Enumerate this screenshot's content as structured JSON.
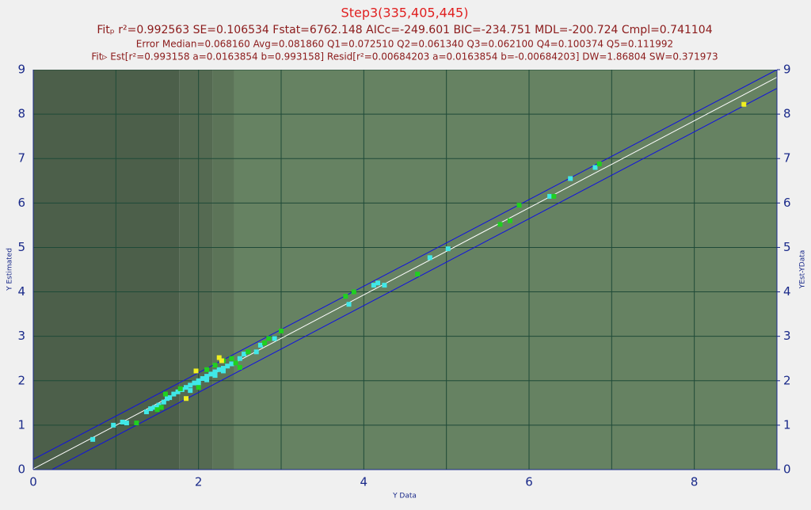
{
  "chart_data": {
    "type": "scatter",
    "title": "Step3(335,405,445)",
    "subtitle": "Fitₚ r²=0.992563 SE=0.106534 Fstat=6762.148 AICc=-249.601 BIC=-234.751 MDL=-200.724 Cmpl=0.741104",
    "annotations": [
      "Error Median=0.068160 Avg=0.081860 Q1=0.072510 Q2=0.061340 Q3=0.062100 Q4=0.100374 Q5=0.111992",
      "Fit▹ Est[r²=0.993158 a=0.0163854 b=0.993158] Resid[r²=0.00684203 a=0.0163854 b=-0.00684203] DW=1.86804 SW=0.371973"
    ],
    "xlabel": "Y Data",
    "ylabel": "Y Estimated",
    "y2label": "YEst-YData",
    "xlim": [
      0,
      9
    ],
    "ylim": [
      0,
      9
    ],
    "y2lim": [
      0,
      9
    ],
    "xticks": [
      0,
      2,
      4,
      6,
      8
    ],
    "xminor": [
      1,
      3,
      5,
      7,
      9
    ],
    "yticks": [
      0,
      1,
      2,
      3,
      4,
      5,
      6,
      7,
      8,
      9
    ],
    "y2ticks": [
      0,
      1,
      2,
      3,
      4,
      5,
      6,
      7,
      8,
      9
    ],
    "grid": true,
    "bands": [
      {
        "x": [
          0,
          1.77
        ],
        "color": "#4c5f4a"
      },
      {
        "x": [
          1.77,
          2.17
        ],
        "color": "#556a52"
      },
      {
        "x": [
          2.17,
          2.43
        ],
        "color": "#5c7458"
      },
      {
        "x": [
          2.43,
          9
        ],
        "color": "#668262"
      }
    ],
    "lines": [
      {
        "color": "#ffffff",
        "x": [
          0,
          9
        ],
        "values": [
          0.016,
          8.83
        ]
      },
      {
        "color": "#1010e0",
        "x": [
          0,
          9
        ],
        "values": [
          0.23,
          9.0
        ]
      },
      {
        "color": "#1010e0",
        "x": [
          0,
          9
        ],
        "values": [
          -0.22,
          8.58
        ]
      }
    ],
    "series": [
      {
        "color": "#40e8e8",
        "x": [
          0.72,
          0.97,
          1.08,
          1.13,
          1.37,
          1.42,
          1.47,
          1.52,
          1.58,
          1.62,
          1.7,
          1.75,
          1.8,
          1.85,
          1.9,
          1.95,
          2.0,
          2.05,
          2.1,
          2.15,
          2.2,
          2.25,
          2.3,
          2.35,
          2.4,
          2.5,
          2.55,
          2.7,
          2.75,
          2.92,
          3.82,
          4.12,
          4.17,
          4.25,
          4.8,
          5.02,
          6.25,
          6.5,
          6.8,
          1.65,
          1.9,
          2.0,
          2.1,
          2.2,
          2.3
        ],
        "values": [
          0.68,
          1.0,
          1.07,
          1.05,
          1.3,
          1.37,
          1.4,
          1.45,
          1.52,
          1.6,
          1.7,
          1.75,
          1.8,
          1.85,
          1.9,
          1.95,
          2.0,
          2.05,
          2.1,
          2.15,
          2.2,
          2.25,
          2.28,
          2.33,
          2.38,
          2.5,
          2.6,
          2.65,
          2.8,
          2.95,
          3.72,
          4.15,
          4.2,
          4.15,
          4.77,
          4.97,
          6.15,
          6.55,
          6.8,
          1.62,
          1.78,
          1.92,
          2.02,
          2.12,
          2.22
        ]
      },
      {
        "color": "#20d020",
        "x": [
          1.25,
          1.5,
          1.55,
          1.6,
          1.78,
          2.0,
          2.1,
          2.2,
          2.3,
          2.4,
          2.45,
          2.6,
          2.8,
          2.85,
          3.0,
          3.78,
          3.88,
          4.65,
          5.65,
          5.77,
          5.88,
          6.3,
          6.85,
          2.5
        ],
        "values": [
          1.05,
          1.35,
          1.4,
          1.7,
          1.82,
          1.85,
          2.25,
          2.35,
          2.45,
          2.5,
          2.4,
          2.65,
          2.85,
          2.95,
          3.12,
          3.9,
          4.0,
          4.4,
          5.52,
          5.6,
          5.95,
          6.15,
          6.88,
          2.3
        ]
      },
      {
        "color": "#f0f020",
        "x": [
          1.85,
          1.97,
          2.25,
          2.28,
          8.6
        ],
        "values": [
          1.6,
          2.22,
          2.52,
          2.45,
          8.22
        ]
      }
    ]
  }
}
